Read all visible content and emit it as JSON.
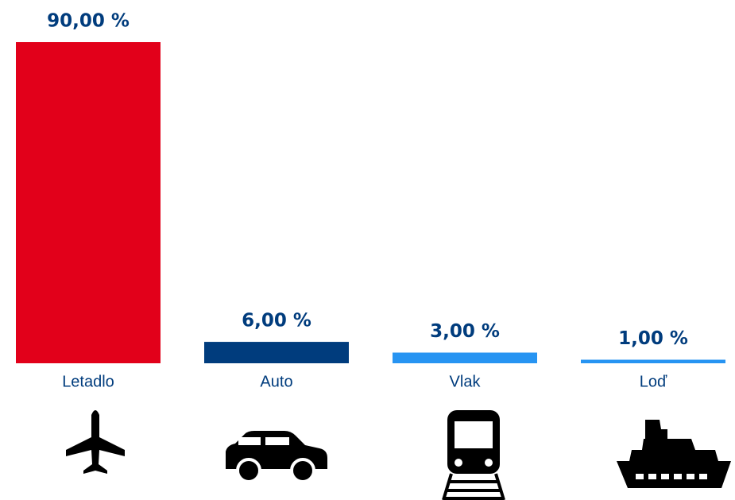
{
  "chart_data": {
    "type": "bar",
    "categories": [
      "Letadlo",
      "Auto",
      "Vlak",
      "Loď"
    ],
    "values": [
      90,
      6,
      3,
      1
    ],
    "value_labels": [
      "90,00 %",
      "6,00 %",
      "3,00 %",
      "1,00 %"
    ],
    "colors": [
      "#e2001a",
      "#003c7d",
      "#2794f2",
      "#2794f2"
    ]
  }
}
